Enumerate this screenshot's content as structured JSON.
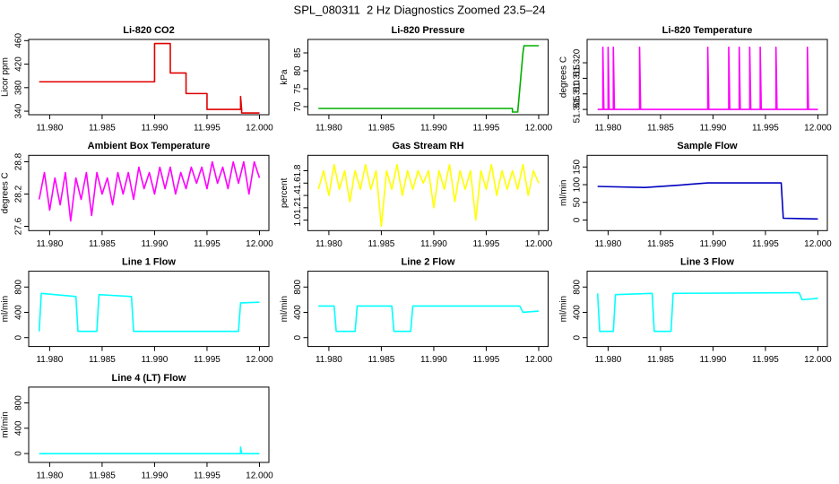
{
  "title": "SPL_080311  2 Hz Diagnostics Zoomed 23.5–24",
  "chart_data": [
    {
      "type": "line",
      "title": "Li-820 CO2",
      "ylabel": "Licor ppm",
      "color": "#e00000",
      "x": [
        11.979,
        11.99,
        11.99,
        11.9915,
        11.9915,
        11.993,
        11.993,
        11.995,
        11.995,
        11.9982,
        11.9982,
        11.9983,
        11.9983,
        12.0
      ],
      "values": [
        390,
        390,
        455,
        455,
        405,
        405,
        370,
        370,
        343,
        343,
        365,
        343,
        337,
        337
      ],
      "xlim": [
        11.978,
        12.0009
      ],
      "ylim": [
        334,
        462
      ],
      "xticks": [
        {
          "value": 11.98,
          "label": "11.980"
        },
        11.985,
        {
          "value": 11.99,
          "label": "11.990"
        },
        11.995,
        {
          "value": 12.0,
          "label": "12.000"
        }
      ],
      "yticks": [
        340,
        380,
        420,
        460
      ]
    },
    {
      "type": "line",
      "title": "Li-820 Pressure",
      "ylabel": "kPa",
      "color": "#00b000",
      "x": [
        11.979,
        11.9975,
        11.9975,
        11.998,
        11.9982,
        11.9985,
        11.9986,
        12.0
      ],
      "values": [
        69.5,
        69.5,
        68.5,
        68.5,
        75,
        85,
        87,
        87
      ],
      "xlim": [
        11.978,
        12.0009
      ],
      "ylim": [
        67.75,
        88.75
      ],
      "xticks": [
        {
          "value": 11.98,
          "label": "11.980"
        },
        11.985,
        {
          "value": 11.99,
          "label": "11.990"
        },
        11.995,
        {
          "value": 12.0,
          "label": "12.000"
        }
      ],
      "yticks": [
        70,
        75,
        80,
        85
      ]
    },
    {
      "type": "line",
      "title": "Li-820 Temperature",
      "ylabel": "degrees C",
      "color": "#ff00ff",
      "x": [
        11.979,
        11.9795,
        11.9795,
        11.9796,
        11.98,
        11.98,
        11.9801,
        11.9805,
        11.9805,
        11.9806,
        11.983,
        11.983,
        11.9831,
        11.9895,
        11.9895,
        11.9896,
        11.9915,
        11.9915,
        11.9916,
        11.9925,
        11.9925,
        11.9926,
        11.9935,
        11.9935,
        11.9936,
        11.9945,
        11.9945,
        11.9946,
        11.996,
        11.996,
        11.9961,
        11.999,
        11.999,
        11.9991,
        12.0
      ],
      "values": [
        51.305,
        51.305,
        51.325,
        51.305,
        51.305,
        51.325,
        51.305,
        51.305,
        51.325,
        51.305,
        51.305,
        51.325,
        51.305,
        51.305,
        51.325,
        51.305,
        51.305,
        51.325,
        51.305,
        51.305,
        51.325,
        51.305,
        51.305,
        51.325,
        51.305,
        51.305,
        51.325,
        51.305,
        51.305,
        51.325,
        51.305,
        51.305,
        51.325,
        51.305,
        51.305
      ],
      "xlim": [
        11.978,
        12.0009
      ],
      "ylim": [
        51.3033,
        51.3275
      ],
      "xticks": [
        {
          "value": 11.98,
          "label": "11.980"
        },
        11.985,
        {
          "value": 11.99,
          "label": "11.990"
        },
        11.995,
        {
          "value": 12.0,
          "label": "12.000"
        }
      ],
      "yticks": [
        51.305,
        {
          "value": 51.31,
          "label": "51.310"
        },
        51.315,
        {
          "value": 51.32,
          "label": "51.320"
        }
      ]
    },
    {
      "type": "line",
      "title": "Ambient Box Temperature",
      "ylabel": "degrees C",
      "color": "#ff00ff",
      "x": [
        11.979,
        11.9795,
        11.98,
        11.9805,
        11.981,
        11.9815,
        11.982,
        11.9825,
        11.983,
        11.9835,
        11.984,
        11.9845,
        11.985,
        11.9855,
        11.986,
        11.9865,
        11.987,
        11.9875,
        11.988,
        11.9885,
        11.989,
        11.9895,
        11.99,
        11.9905,
        11.991,
        11.9915,
        11.992,
        11.9925,
        11.993,
        11.9935,
        11.994,
        11.9945,
        11.995,
        11.9955,
        11.996,
        11.9965,
        11.997,
        11.9975,
        11.998,
        11.9985,
        11.999,
        11.9995,
        12.0
      ],
      "values": [
        28.1,
        28.6,
        27.9,
        28.5,
        28.0,
        28.6,
        27.7,
        28.5,
        28.1,
        28.6,
        27.8,
        28.6,
        28.2,
        28.5,
        28.0,
        28.6,
        28.2,
        28.6,
        28.1,
        28.7,
        28.3,
        28.6,
        28.2,
        28.7,
        28.3,
        28.7,
        28.2,
        28.6,
        28.3,
        28.7,
        28.4,
        28.7,
        28.3,
        28.8,
        28.4,
        28.7,
        28.3,
        28.8,
        28.4,
        28.8,
        28.2,
        28.8,
        28.5
      ],
      "xlim": [
        11.978,
        12.0009
      ],
      "ylim": [
        27.52,
        28.92
      ],
      "xticks": [
        {
          "value": 11.98,
          "label": "11.980"
        },
        11.985,
        {
          "value": 11.99,
          "label": "11.990"
        },
        11.995,
        {
          "value": 12.0,
          "label": "12.000"
        }
      ],
      "yticks": [
        27.6,
        28.2,
        28.8
      ]
    },
    {
      "type": "line",
      "title": "Gas Stream RH",
      "ylabel": "percent",
      "color": "#ffff00",
      "x": [
        11.979,
        11.9795,
        11.98,
        11.9805,
        11.981,
        11.9815,
        11.982,
        11.9825,
        11.983,
        11.9835,
        11.984,
        11.9845,
        11.985,
        11.9855,
        11.986,
        11.9865,
        11.987,
        11.9875,
        11.988,
        11.9885,
        11.989,
        11.9895,
        11.99,
        11.9905,
        11.991,
        11.9915,
        11.992,
        11.9925,
        11.993,
        11.9935,
        11.994,
        11.9945,
        11.995,
        11.9955,
        11.996,
        11.9965,
        11.997,
        11.9975,
        11.998,
        11.9985,
        11.999,
        11.9995,
        12.0
      ],
      "values": [
        1.5,
        1.8,
        1.4,
        1.9,
        1.5,
        1.8,
        1.3,
        1.8,
        1.5,
        1.9,
        1.5,
        1.8,
        0.9,
        1.8,
        1.5,
        1.9,
        1.4,
        1.8,
        1.5,
        1.8,
        1.6,
        1.8,
        1.2,
        1.8,
        1.5,
        1.9,
        1.3,
        1.8,
        1.5,
        1.8,
        1.0,
        1.8,
        1.5,
        1.9,
        1.4,
        1.8,
        1.5,
        1.8,
        1.5,
        1.9,
        1.4,
        1.8,
        1.6
      ],
      "xlim": [
        11.978,
        12.0009
      ],
      "ylim": [
        0.83,
        2.05
      ],
      "xticks": [
        {
          "value": 11.98,
          "label": "11.980"
        },
        11.985,
        {
          "value": 11.99,
          "label": "11.990"
        },
        11.995,
        {
          "value": 12.0,
          "label": "12.000"
        }
      ],
      "yticks": [
        {
          "value": 1.0,
          "label": "1.0"
        },
        1.2,
        1.4,
        1.6,
        1.8
      ]
    },
    {
      "type": "line",
      "title": "Sample Flow",
      "ylabel": "ml/min",
      "color": "#0000c0",
      "x": [
        11.979,
        11.9835,
        11.9835,
        11.9865,
        11.9865,
        11.9895,
        11.9895,
        11.9965,
        11.9967,
        12.0
      ],
      "values": [
        95,
        92,
        92,
        98,
        98,
        105,
        105,
        105,
        5,
        3
      ],
      "xlim": [
        11.978,
        12.0009
      ],
      "ylim": [
        -30,
        183
      ],
      "xticks": [
        {
          "value": 11.98,
          "label": "11.980"
        },
        11.985,
        {
          "value": 11.99,
          "label": "11.990"
        },
        11.995,
        {
          "value": 12.0,
          "label": "12.000"
        }
      ],
      "yticks": [
        0,
        50,
        100,
        150
      ]
    },
    {
      "type": "line",
      "title": "Line 1 Flow",
      "ylabel": "ml/min",
      "color": "#00ffff",
      "x": [
        11.979,
        11.9792,
        11.9825,
        11.9827,
        11.9845,
        11.9847,
        11.9878,
        11.988,
        11.998,
        11.9982,
        12.0
      ],
      "values": [
        100,
        700,
        650,
        100,
        100,
        680,
        650,
        100,
        100,
        550,
        560
      ],
      "xlim": [
        11.978,
        12.0009
      ],
      "ylim": [
        -140,
        1050
      ],
      "xticks": [
        {
          "value": 11.98,
          "label": "11.980"
        },
        11.985,
        {
          "value": 11.99,
          "label": "11.990"
        },
        11.995,
        {
          "value": 12.0,
          "label": "12.000"
        }
      ],
      "yticks": [
        0,
        400,
        800
      ]
    },
    {
      "type": "line",
      "title": "Line 2 Flow",
      "ylabel": "ml/min",
      "color": "#00ffff",
      "x": [
        11.979,
        11.9805,
        11.9807,
        11.9825,
        11.9827,
        11.986,
        11.9862,
        11.9878,
        11.988,
        11.9982,
        11.9985,
        12.0
      ],
      "values": [
        500,
        500,
        100,
        100,
        500,
        500,
        100,
        100,
        500,
        500,
        400,
        420
      ],
      "xlim": [
        11.978,
        12.0009
      ],
      "ylim": [
        -140,
        1050
      ],
      "xticks": [
        {
          "value": 11.98,
          "label": "11.980"
        },
        11.985,
        {
          "value": 11.99,
          "label": "11.990"
        },
        11.995,
        {
          "value": 12.0,
          "label": "12.000"
        }
      ],
      "yticks": [
        0,
        400,
        800
      ]
    },
    {
      "type": "line",
      "title": "Line 3 Flow",
      "ylabel": "ml/min",
      "color": "#00ffff",
      "x": [
        11.979,
        11.9792,
        11.9795,
        11.9805,
        11.9807,
        11.9842,
        11.9844,
        11.986,
        11.9862,
        11.9982,
        11.9985,
        12.0
      ],
      "values": [
        700,
        100,
        100,
        100,
        680,
        700,
        100,
        100,
        700,
        710,
        600,
        620
      ],
      "xlim": [
        11.978,
        12.0009
      ],
      "ylim": [
        -140,
        1050
      ],
      "xticks": [
        {
          "value": 11.98,
          "label": "11.980"
        },
        11.985,
        {
          "value": 11.99,
          "label": "11.990"
        },
        11.995,
        {
          "value": 12.0,
          "label": "12.000"
        }
      ],
      "yticks": [
        0,
        400,
        800
      ]
    },
    {
      "type": "line",
      "title": "Line 4 (LT) Flow",
      "ylabel": "ml/min",
      "color": "#00ffff",
      "x": [
        11.979,
        11.9982,
        11.9982,
        11.9983,
        12.0
      ],
      "values": [
        0,
        0,
        100,
        0,
        0
      ],
      "xlim": [
        11.978,
        12.0009
      ],
      "ylim": [
        -140,
        1050
      ],
      "xticks": [
        {
          "value": 11.98,
          "label": "11.980"
        },
        11.985,
        {
          "value": 11.99,
          "label": "11.990"
        },
        11.995,
        {
          "value": 12.0,
          "label": "12.000"
        }
      ],
      "yticks": [
        0,
        400,
        800
      ]
    }
  ]
}
